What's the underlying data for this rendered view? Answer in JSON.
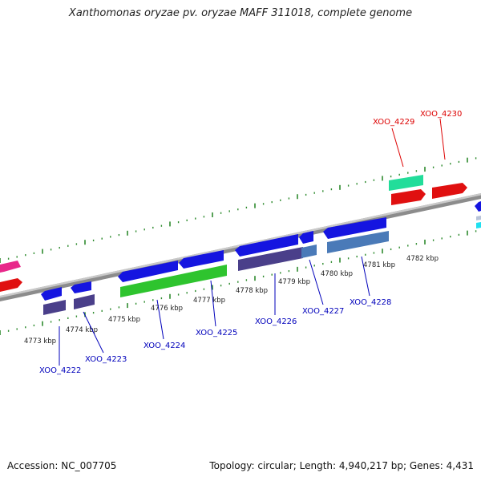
{
  "title": "Xanthomonas oryzae pv. oryzae MAFF 311018, complete genome",
  "footer": {
    "accession": "Accession: NC_007705",
    "stats": "Topology: circular; Length: 4,940,217 bp; Genes: 4,431"
  },
  "colors": {
    "genome_line": "#8a8a8a",
    "ticks": "#2e8b2e",
    "label_forward": "#dd0000",
    "label_reverse": "#0000bb"
  },
  "kbp_labels": [
    "4773 kbp",
    "4774 kbp",
    "4775 kbp",
    "4776 kbp",
    "4777 kbp",
    "4778 kbp",
    "4779 kbp",
    "4780 kbp",
    "4781 kbp",
    "4782 kbp"
  ],
  "gene_labels": [
    {
      "text": "XOO_4222",
      "strand": "reverse"
    },
    {
      "text": "XOO_4223",
      "strand": "reverse"
    },
    {
      "text": "XOO_4224",
      "strand": "reverse"
    },
    {
      "text": "XOO_4225",
      "strand": "reverse"
    },
    {
      "text": "XOO_4226",
      "strand": "reverse"
    },
    {
      "text": "XOO_4227",
      "strand": "reverse"
    },
    {
      "text": "XOO_4228",
      "strand": "reverse"
    },
    {
      "text": "XOO_4229",
      "strand": "forward"
    },
    {
      "text": "XOO_4230",
      "strand": "forward"
    }
  ]
}
